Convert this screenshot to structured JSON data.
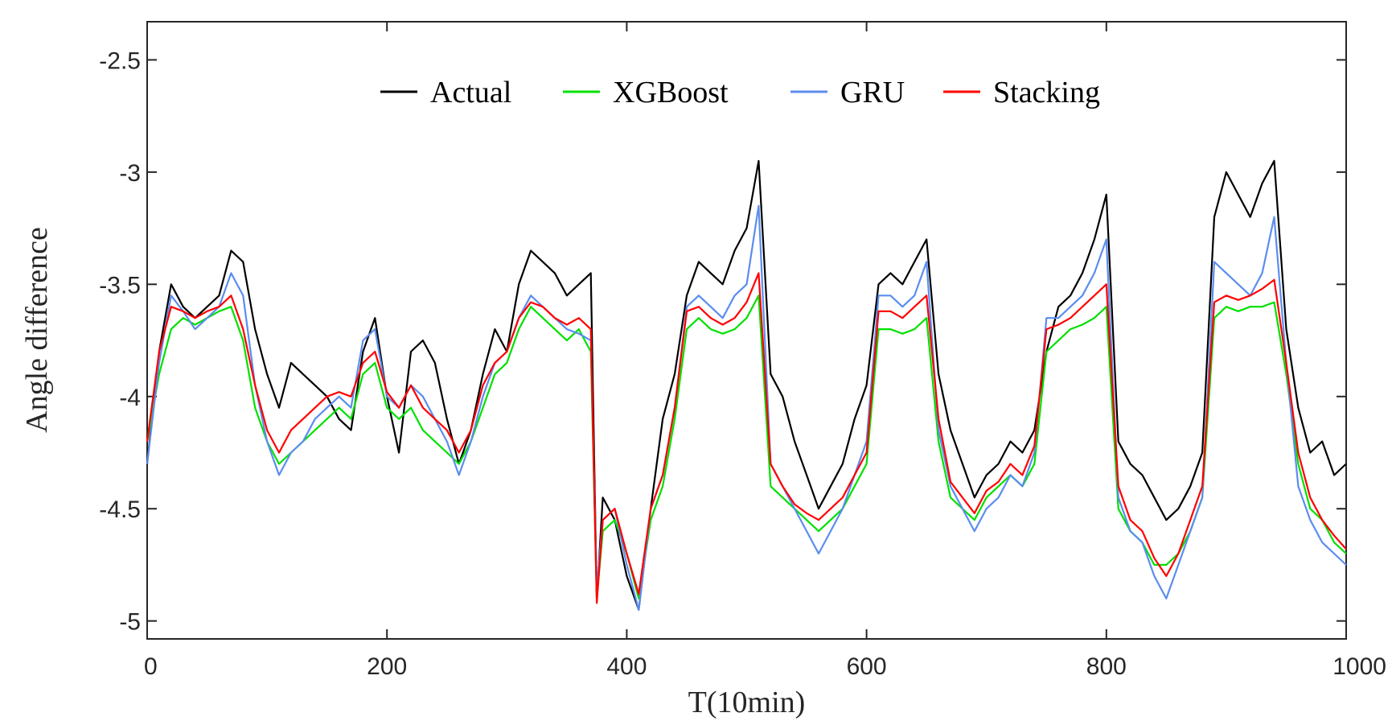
{
  "chart_data": {
    "type": "line",
    "title": "",
    "xlabel": "T(10min)",
    "ylabel": "Angle difference",
    "xlim": [
      0,
      1000
    ],
    "ylim": [
      -5.08,
      -2.33
    ],
    "xticks": [
      0,
      200,
      400,
      600,
      800,
      1000
    ],
    "xtick_labels": [
      "0",
      "200",
      "400",
      "600",
      "800",
      "1000"
    ],
    "yticks": [
      -5,
      -4.5,
      -4,
      -3.5,
      -3,
      -2.5
    ],
    "ytick_labels": [
      "-5",
      "-4.5",
      "-4",
      "-3.5",
      "-3",
      "-2.5"
    ],
    "grid": false,
    "legend_position": "top-center",
    "series": [
      {
        "name": "Actual",
        "color": "#000000",
        "x": [
          0,
          10,
          20,
          30,
          40,
          50,
          60,
          70,
          80,
          90,
          100,
          110,
          120,
          130,
          140,
          150,
          160,
          170,
          180,
          190,
          200,
          210,
          220,
          230,
          240,
          250,
          260,
          270,
          280,
          290,
          300,
          310,
          320,
          330,
          340,
          350,
          360,
          370,
          375,
          380,
          390,
          400,
          410,
          420,
          430,
          440,
          450,
          460,
          470,
          480,
          490,
          500,
          510,
          520,
          530,
          540,
          550,
          560,
          570,
          580,
          590,
          600,
          610,
          620,
          630,
          640,
          650,
          660,
          670,
          680,
          690,
          700,
          710,
          720,
          730,
          740,
          750,
          760,
          770,
          780,
          790,
          800,
          810,
          820,
          830,
          840,
          850,
          860,
          870,
          880,
          890,
          900,
          910,
          920,
          930,
          940,
          950,
          960,
          970,
          980,
          990,
          1000
        ],
        "y": [
          -4.3,
          -3.8,
          -3.5,
          -3.6,
          -3.65,
          -3.6,
          -3.55,
          -3.35,
          -3.4,
          -3.7,
          -3.9,
          -4.05,
          -3.85,
          -3.9,
          -3.95,
          -4.0,
          -4.1,
          -4.15,
          -3.8,
          -3.65,
          -4.0,
          -4.25,
          -3.8,
          -3.75,
          -3.85,
          -4.1,
          -4.3,
          -4.15,
          -3.9,
          -3.7,
          -3.8,
          -3.5,
          -3.35,
          -3.4,
          -3.45,
          -3.55,
          -3.5,
          -3.45,
          -4.9,
          -4.45,
          -4.55,
          -4.8,
          -4.95,
          -4.5,
          -4.1,
          -3.9,
          -3.55,
          -3.4,
          -3.45,
          -3.5,
          -3.35,
          -3.25,
          -2.95,
          -3.9,
          -4.0,
          -4.2,
          -4.35,
          -4.5,
          -4.4,
          -4.3,
          -4.1,
          -3.95,
          -3.5,
          -3.45,
          -3.5,
          -3.4,
          -3.3,
          -3.9,
          -4.15,
          -4.3,
          -4.45,
          -4.35,
          -4.3,
          -4.2,
          -4.25,
          -4.15,
          -3.8,
          -3.6,
          -3.55,
          -3.45,
          -3.3,
          -3.1,
          -4.2,
          -4.3,
          -4.35,
          -4.45,
          -4.55,
          -4.5,
          -4.4,
          -4.25,
          -3.2,
          -3.0,
          -3.1,
          -3.2,
          -3.05,
          -2.95,
          -3.7,
          -4.05,
          -4.25,
          -4.2,
          -4.35,
          -4.3
        ]
      },
      {
        "name": "XGBoost",
        "color": "#00e000",
        "x": [
          0,
          10,
          20,
          30,
          40,
          50,
          60,
          70,
          80,
          90,
          100,
          110,
          120,
          130,
          140,
          150,
          160,
          170,
          180,
          190,
          200,
          210,
          220,
          230,
          240,
          250,
          260,
          270,
          280,
          290,
          300,
          310,
          320,
          330,
          340,
          350,
          360,
          370,
          375,
          380,
          390,
          400,
          410,
          420,
          430,
          440,
          450,
          460,
          470,
          480,
          490,
          500,
          510,
          520,
          530,
          540,
          550,
          560,
          570,
          580,
          590,
          600,
          610,
          620,
          630,
          640,
          650,
          660,
          670,
          680,
          690,
          700,
          710,
          720,
          730,
          740,
          750,
          760,
          770,
          780,
          790,
          800,
          810,
          820,
          830,
          840,
          850,
          860,
          870,
          880,
          890,
          900,
          910,
          920,
          930,
          940,
          950,
          960,
          970,
          980,
          990,
          1000
        ],
        "y": [
          -4.2,
          -3.9,
          -3.7,
          -3.65,
          -3.68,
          -3.65,
          -3.62,
          -3.6,
          -3.75,
          -4.05,
          -4.2,
          -4.3,
          -4.25,
          -4.2,
          -4.15,
          -4.1,
          -4.05,
          -4.1,
          -3.9,
          -3.85,
          -4.05,
          -4.1,
          -4.05,
          -4.15,
          -4.2,
          -4.25,
          -4.3,
          -4.2,
          -4.05,
          -3.9,
          -3.85,
          -3.7,
          -3.6,
          -3.65,
          -3.7,
          -3.75,
          -3.7,
          -3.8,
          -4.9,
          -4.6,
          -4.55,
          -4.7,
          -4.9,
          -4.55,
          -4.4,
          -4.1,
          -3.7,
          -3.65,
          -3.7,
          -3.72,
          -3.7,
          -3.65,
          -3.55,
          -4.4,
          -4.45,
          -4.5,
          -4.55,
          -4.6,
          -4.55,
          -4.5,
          -4.4,
          -4.3,
          -3.7,
          -3.7,
          -3.72,
          -3.7,
          -3.65,
          -4.2,
          -4.45,
          -4.5,
          -4.55,
          -4.45,
          -4.4,
          -4.35,
          -4.4,
          -4.3,
          -3.8,
          -3.75,
          -3.7,
          -3.68,
          -3.65,
          -3.6,
          -4.5,
          -4.6,
          -4.65,
          -4.75,
          -4.75,
          -4.7,
          -4.6,
          -4.45,
          -3.65,
          -3.6,
          -3.62,
          -3.6,
          -3.6,
          -3.58,
          -3.9,
          -4.3,
          -4.5,
          -4.55,
          -4.65,
          -4.7
        ]
      },
      {
        "name": "GRU",
        "color": "#5b8def",
        "x": [
          0,
          10,
          20,
          30,
          40,
          50,
          60,
          70,
          80,
          90,
          100,
          110,
          120,
          130,
          140,
          150,
          160,
          170,
          180,
          190,
          200,
          210,
          220,
          230,
          240,
          250,
          260,
          270,
          280,
          290,
          300,
          310,
          320,
          330,
          340,
          350,
          360,
          370,
          375,
          380,
          390,
          400,
          410,
          420,
          430,
          440,
          450,
          460,
          470,
          480,
          490,
          500,
          510,
          520,
          530,
          540,
          550,
          560,
          570,
          580,
          590,
          600,
          610,
          620,
          630,
          640,
          650,
          660,
          670,
          680,
          690,
          700,
          710,
          720,
          730,
          740,
          750,
          760,
          770,
          780,
          790,
          800,
          810,
          820,
          830,
          840,
          850,
          860,
          870,
          880,
          890,
          900,
          910,
          920,
          930,
          940,
          950,
          960,
          970,
          980,
          990,
          1000
        ],
        "y": [
          -4.3,
          -3.85,
          -3.55,
          -3.62,
          -3.7,
          -3.65,
          -3.6,
          -3.45,
          -3.55,
          -3.95,
          -4.2,
          -4.35,
          -4.25,
          -4.2,
          -4.1,
          -4.05,
          -4.0,
          -4.05,
          -3.75,
          -3.7,
          -4.0,
          -4.05,
          -3.95,
          -4.0,
          -4.1,
          -4.2,
          -4.35,
          -4.2,
          -4.0,
          -3.85,
          -3.8,
          -3.65,
          -3.55,
          -3.6,
          -3.65,
          -3.7,
          -3.72,
          -3.75,
          -4.85,
          -4.55,
          -4.5,
          -4.75,
          -4.95,
          -4.5,
          -4.35,
          -4.05,
          -3.6,
          -3.55,
          -3.6,
          -3.65,
          -3.55,
          -3.5,
          -3.15,
          -4.3,
          -4.4,
          -4.5,
          -4.6,
          -4.7,
          -4.6,
          -4.5,
          -4.35,
          -4.2,
          -3.55,
          -3.55,
          -3.6,
          -3.55,
          -3.4,
          -4.15,
          -4.4,
          -4.5,
          -4.6,
          -4.5,
          -4.45,
          -4.35,
          -4.4,
          -4.25,
          -3.65,
          -3.65,
          -3.6,
          -3.55,
          -3.45,
          -3.3,
          -4.45,
          -4.6,
          -4.65,
          -4.8,
          -4.9,
          -4.75,
          -4.6,
          -4.45,
          -3.4,
          -3.45,
          -3.5,
          -3.55,
          -3.45,
          -3.2,
          -3.85,
          -4.4,
          -4.55,
          -4.65,
          -4.7,
          -4.75
        ]
      },
      {
        "name": "Stacking",
        "color": "#ff0000",
        "x": [
          0,
          10,
          20,
          30,
          40,
          50,
          60,
          70,
          80,
          90,
          100,
          110,
          120,
          130,
          140,
          150,
          160,
          170,
          180,
          190,
          200,
          210,
          220,
          230,
          240,
          250,
          260,
          270,
          280,
          290,
          300,
          310,
          320,
          330,
          340,
          350,
          360,
          370,
          375,
          380,
          390,
          400,
          410,
          420,
          430,
          440,
          450,
          460,
          470,
          480,
          490,
          500,
          510,
          520,
          530,
          540,
          550,
          560,
          570,
          580,
          590,
          600,
          610,
          620,
          630,
          640,
          650,
          660,
          670,
          680,
          690,
          700,
          710,
          720,
          730,
          740,
          750,
          760,
          770,
          780,
          790,
          800,
          810,
          820,
          830,
          840,
          850,
          860,
          870,
          880,
          890,
          900,
          910,
          920,
          930,
          940,
          950,
          960,
          970,
          980,
          990,
          1000
        ],
        "y": [
          -4.2,
          -3.8,
          -3.6,
          -3.62,
          -3.65,
          -3.62,
          -3.6,
          -3.55,
          -3.7,
          -3.95,
          -4.15,
          -4.25,
          -4.15,
          -4.1,
          -4.05,
          -4.0,
          -3.98,
          -4.0,
          -3.85,
          -3.8,
          -3.98,
          -4.05,
          -3.95,
          -4.05,
          -4.1,
          -4.15,
          -4.25,
          -4.15,
          -3.95,
          -3.85,
          -3.8,
          -3.65,
          -3.58,
          -3.6,
          -3.65,
          -3.68,
          -3.65,
          -3.7,
          -4.92,
          -4.55,
          -4.5,
          -4.7,
          -4.88,
          -4.5,
          -4.35,
          -4.05,
          -3.62,
          -3.6,
          -3.65,
          -3.68,
          -3.65,
          -3.58,
          -3.45,
          -4.3,
          -4.4,
          -4.48,
          -4.52,
          -4.55,
          -4.5,
          -4.45,
          -4.35,
          -4.25,
          -3.62,
          -3.62,
          -3.65,
          -3.6,
          -3.55,
          -4.1,
          -4.38,
          -4.45,
          -4.52,
          -4.42,
          -4.38,
          -4.3,
          -4.35,
          -4.22,
          -3.7,
          -3.68,
          -3.65,
          -3.6,
          -3.55,
          -3.5,
          -4.4,
          -4.55,
          -4.6,
          -4.72,
          -4.8,
          -4.7,
          -4.55,
          -4.4,
          -3.58,
          -3.55,
          -3.57,
          -3.55,
          -3.52,
          -3.48,
          -3.85,
          -4.25,
          -4.45,
          -4.55,
          -4.62,
          -4.68
        ]
      }
    ]
  }
}
